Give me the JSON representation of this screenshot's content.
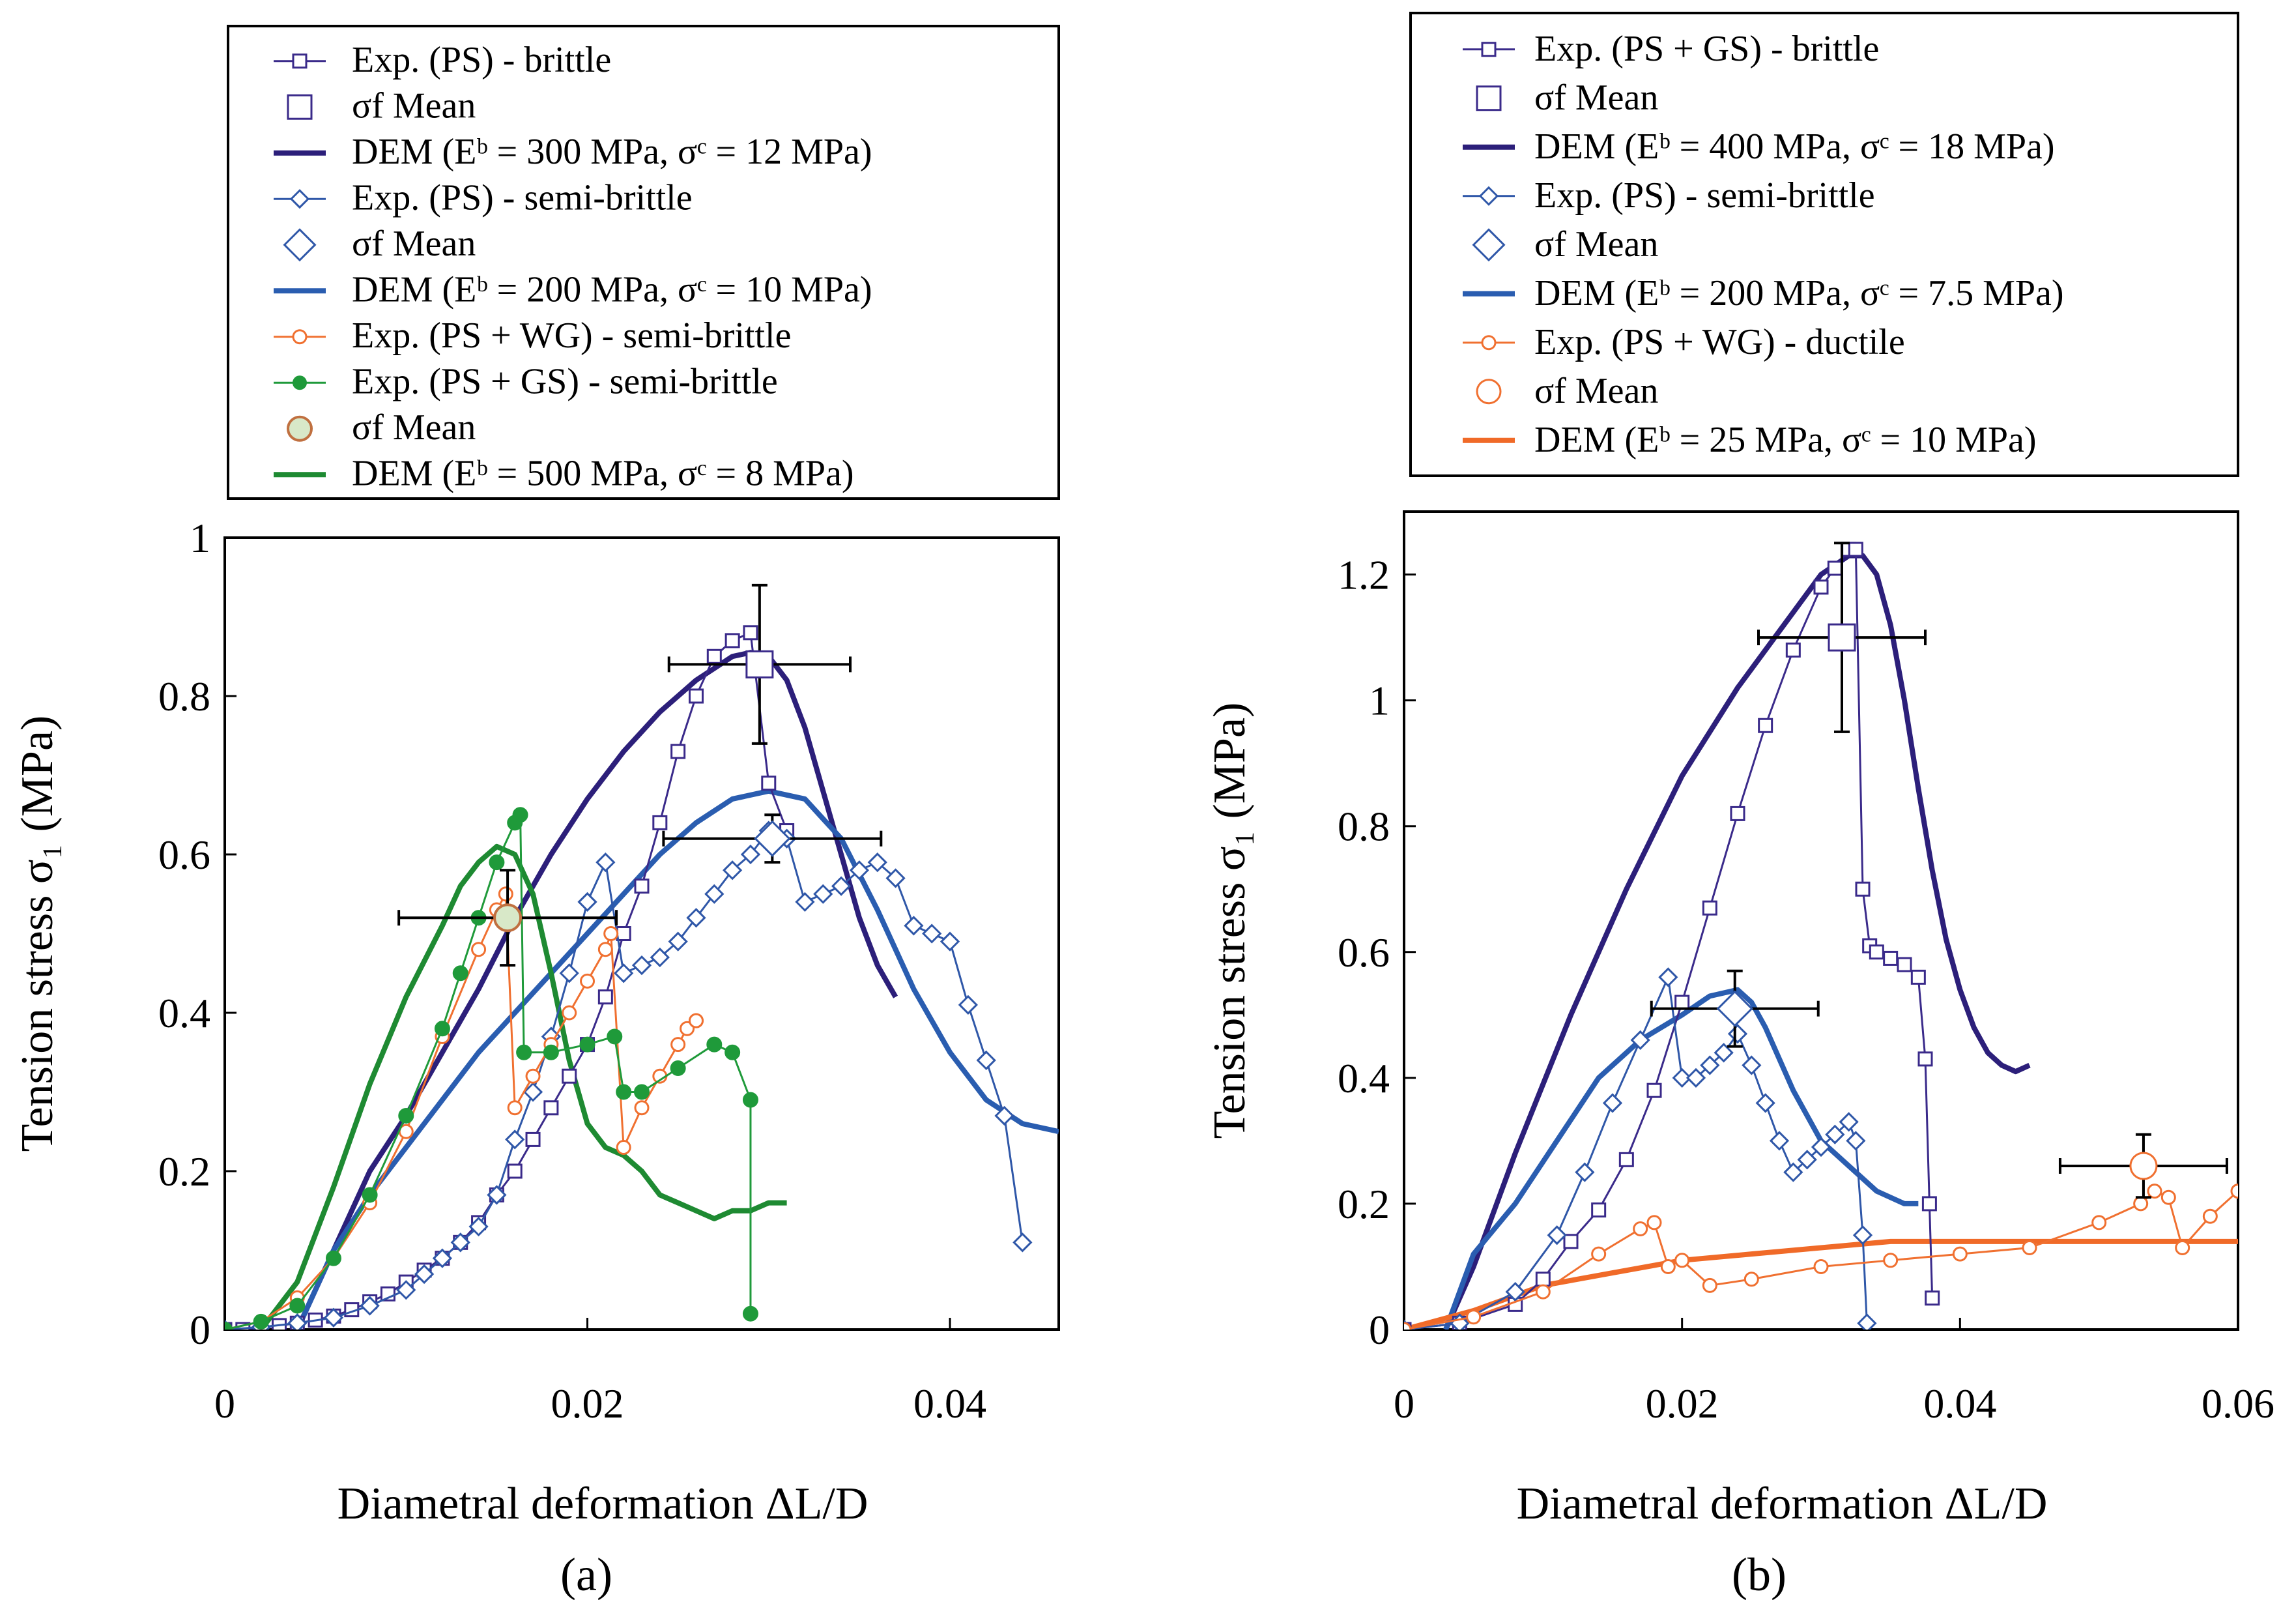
{
  "chart_data": [
    {
      "type": "line",
      "panel_label": "(a)",
      "xlabel": "Diametral deformation   ΔL/D",
      "ylabel": "Tension stress  σ₁   (MPa)",
      "xlim": [
        0,
        0.046
      ],
      "ylim": [
        0,
        1
      ],
      "xticks": [
        0,
        0.02,
        0.04
      ],
      "xtick_labels": [
        "0",
        "0.02",
        "0.04"
      ],
      "yticks": [
        0,
        0.2,
        0.4,
        0.6,
        0.8,
        1
      ],
      "ytick_labels": [
        "0",
        "0.2",
        "0.4",
        "0.6",
        "0.8",
        "1"
      ],
      "legend_position": "top",
      "legend": [
        "Exp.    (PS) - brittle",
        "σf  Mean",
        "DEM   (Eᵇ = 300 MPa,  σᶜ = 12 MPa)",
        "Exp.    (PS) - semi-brittle",
        "σf  Mean",
        "DEM   (Eᵇ = 200 MPa,  σᶜ = 10 MPa)",
        "Exp.    (PS + WG) - semi-brittle",
        "Exp.    (PS + GS) - semi-brittle",
        "σf  Mean",
        "DEM   (Eᵇ = 500 MPa,  σᶜ =   8 MPa)"
      ],
      "series": [
        {
          "name": "Exp. (PS) - brittle",
          "kind": "exp",
          "color": "#3a2a8a",
          "marker": "square",
          "x": [
            0,
            0.001,
            0.002,
            0.003,
            0.004,
            0.005,
            0.006,
            0.007,
            0.008,
            0.009,
            0.01,
            0.011,
            0.012,
            0.013,
            0.014,
            0.015,
            0.016,
            0.017,
            0.018,
            0.019,
            0.02,
            0.021,
            0.022,
            0.023,
            0.024,
            0.025,
            0.026,
            0.027,
            0.028,
            0.029,
            0.03,
            0.031
          ],
          "y": [
            0,
            0,
            0.002,
            0.005,
            0.008,
            0.012,
            0.017,
            0.025,
            0.035,
            0.045,
            0.06,
            0.075,
            0.09,
            0.11,
            0.135,
            0.17,
            0.2,
            0.24,
            0.28,
            0.32,
            0.36,
            0.42,
            0.5,
            0.56,
            0.64,
            0.73,
            0.8,
            0.85,
            0.87,
            0.88,
            0.69,
            0.63
          ]
        },
        {
          "name": "σf Mean (PS brittle)",
          "kind": "mean",
          "color": "#3a2a8a",
          "marker": "square",
          "x": [
            0.0295
          ],
          "y": [
            0.84
          ],
          "xerr": 0.005,
          "yerr": 0.1
        },
        {
          "name": "DEM (Eb = 300 MPa, σc = 12 MPa)",
          "kind": "dem",
          "color": "#2c1f7a",
          "x": [
            0.004,
            0.006,
            0.008,
            0.01,
            0.012,
            0.014,
            0.016,
            0.018,
            0.02,
            0.022,
            0.024,
            0.026,
            0.028,
            0.029,
            0.03,
            0.031,
            0.032,
            0.033,
            0.034,
            0.035,
            0.036,
            0.037
          ],
          "y": [
            0,
            0.1,
            0.2,
            0.27,
            0.35,
            0.43,
            0.52,
            0.6,
            0.67,
            0.73,
            0.78,
            0.82,
            0.85,
            0.855,
            0.85,
            0.82,
            0.76,
            0.68,
            0.6,
            0.52,
            0.46,
            0.42
          ]
        },
        {
          "name": "Exp. (PS) - semi-brittle",
          "kind": "exp",
          "color": "#2f57a8",
          "marker": "diamond",
          "x": [
            0,
            0.002,
            0.004,
            0.006,
            0.008,
            0.01,
            0.011,
            0.012,
            0.013,
            0.014,
            0.015,
            0.016,
            0.017,
            0.018,
            0.019,
            0.02,
            0.021,
            0.022,
            0.023,
            0.024,
            0.025,
            0.026,
            0.027,
            0.028,
            0.029,
            0.03,
            0.031,
            0.032,
            0.033,
            0.034,
            0.035,
            0.036,
            0.037,
            0.038,
            0.039,
            0.04,
            0.041,
            0.042,
            0.043,
            0.044
          ],
          "y": [
            0,
            0.003,
            0.008,
            0.015,
            0.03,
            0.05,
            0.07,
            0.09,
            0.11,
            0.13,
            0.17,
            0.24,
            0.3,
            0.37,
            0.45,
            0.54,
            0.59,
            0.45,
            0.46,
            0.47,
            0.49,
            0.52,
            0.55,
            0.58,
            0.6,
            0.63,
            0.62,
            0.54,
            0.55,
            0.56,
            0.58,
            0.59,
            0.57,
            0.51,
            0.5,
            0.49,
            0.41,
            0.34,
            0.27,
            0.11
          ]
        },
        {
          "name": "σf Mean (PS semi-brittle)",
          "kind": "mean",
          "color": "#2f57a8",
          "marker": "diamond",
          "x": [
            0.0302
          ],
          "y": [
            0.62
          ],
          "xerr": 0.006,
          "yerr": 0.03
        },
        {
          "name": "DEM (Eb = 200 MPa, σc = 10 MPa)",
          "kind": "dem",
          "color": "#2a5db0",
          "x": [
            0.004,
            0.006,
            0.008,
            0.01,
            0.012,
            0.014,
            0.016,
            0.018,
            0.02,
            0.022,
            0.024,
            0.026,
            0.028,
            0.03,
            0.032,
            0.034,
            0.036,
            0.038,
            0.04,
            0.042,
            0.044,
            0.046
          ],
          "y": [
            0,
            0.1,
            0.17,
            0.23,
            0.29,
            0.35,
            0.4,
            0.45,
            0.5,
            0.55,
            0.6,
            0.64,
            0.67,
            0.68,
            0.67,
            0.62,
            0.53,
            0.43,
            0.35,
            0.29,
            0.26,
            0.25
          ]
        },
        {
          "name": "Exp. (PS + WG) - semi-brittle",
          "kind": "exp",
          "color": "#f07030",
          "marker": "circle-open",
          "x": [
            0,
            0.002,
            0.004,
            0.006,
            0.008,
            0.01,
            0.012,
            0.014,
            0.015,
            0.0155,
            0.016,
            0.017,
            0.018,
            0.019,
            0.02,
            0.021,
            0.0213,
            0.022,
            0.023,
            0.024,
            0.025,
            0.0255,
            0.026,
            0.026
          ],
          "y": [
            0,
            0.01,
            0.04,
            0.09,
            0.16,
            0.25,
            0.37,
            0.48,
            0.53,
            0.55,
            0.28,
            0.32,
            0.36,
            0.4,
            0.44,
            0.48,
            0.5,
            0.23,
            0.28,
            0.32,
            0.36,
            0.38,
            0.39,
            0.39
          ]
        },
        {
          "name": "Exp. (PS + GS) - semi-brittle",
          "kind": "exp",
          "color": "#1f9a3a",
          "marker": "circle-filled",
          "x": [
            0,
            0.002,
            0.004,
            0.006,
            0.008,
            0.01,
            0.012,
            0.013,
            0.014,
            0.015,
            0.016,
            0.0163,
            0.0165,
            0.018,
            0.02,
            0.0215,
            0.022,
            0.023,
            0.025,
            0.027,
            0.028,
            0.029,
            0.029
          ],
          "y": [
            0,
            0.01,
            0.03,
            0.09,
            0.17,
            0.27,
            0.38,
            0.45,
            0.52,
            0.59,
            0.64,
            0.65,
            0.35,
            0.35,
            0.36,
            0.37,
            0.3,
            0.3,
            0.33,
            0.36,
            0.35,
            0.29,
            0.02
          ]
        },
        {
          "name": "σf Mean (PS + GS)",
          "kind": "mean",
          "color": "#9a9a50",
          "marker": "circle-filled-light",
          "x": [
            0.0156
          ],
          "y": [
            0.52
          ],
          "xerr": 0.006,
          "yerr": 0.06
        },
        {
          "name": "DEM (Eb = 500 MPa, σc = 8 MPa)",
          "kind": "dem",
          "color": "#1e8a32",
          "x": [
            0.002,
            0.004,
            0.006,
            0.008,
            0.01,
            0.012,
            0.013,
            0.014,
            0.015,
            0.016,
            0.017,
            0.018,
            0.019,
            0.02,
            0.021,
            0.022,
            0.023,
            0.024,
            0.025,
            0.026,
            0.027,
            0.028,
            0.029,
            0.03,
            0.031
          ],
          "y": [
            0,
            0.06,
            0.18,
            0.31,
            0.42,
            0.51,
            0.56,
            0.59,
            0.61,
            0.6,
            0.55,
            0.45,
            0.34,
            0.26,
            0.23,
            0.22,
            0.2,
            0.17,
            0.16,
            0.15,
            0.14,
            0.15,
            0.15,
            0.16,
            0.16
          ]
        }
      ]
    },
    {
      "type": "line",
      "panel_label": "(b)",
      "xlabel": "Diametral deformation   ΔL/D",
      "ylabel": "Tension stress  σ₁   (MPa)",
      "xlim": [
        0,
        0.06
      ],
      "ylim": [
        0,
        1.3
      ],
      "xticks": [
        0,
        0.02,
        0.04,
        0.06
      ],
      "xtick_labels": [
        "0",
        "0.02",
        "0.04",
        "0.06"
      ],
      "yticks": [
        0,
        0.2,
        0.4,
        0.6,
        0.8,
        1,
        1.2
      ],
      "ytick_labels": [
        "0",
        "0.2",
        "0.4",
        "0.6",
        "0.8",
        "1",
        "1.2"
      ],
      "legend_position": "top",
      "legend": [
        "Exp.    (PS + GS) - brittle",
        "σf  Mean",
        "DEM   (Eᵇ = 400 MPa,  σᶜ = 18 MPa)",
        "Exp.    (PS) - semi-brittle",
        "σf  Mean",
        "DEM   (Eᵇ = 200 MPa,  σᶜ = 7.5 MPa)",
        "Exp.    (PS + WG) - ductile",
        "σf  Mean",
        "DEM   (Eᵇ =   25 MPa,  σᶜ = 10 MPa)"
      ],
      "series": [
        {
          "name": "Exp. (PS + GS) - brittle",
          "kind": "exp",
          "color": "#3a2a8a",
          "marker": "square",
          "x": [
            0,
            0.004,
            0.008,
            0.01,
            0.012,
            0.014,
            0.016,
            0.018,
            0.02,
            0.022,
            0.024,
            0.026,
            0.028,
            0.03,
            0.031,
            0.032,
            0.0325,
            0.033,
            0.0335,
            0.034,
            0.035,
            0.036,
            0.037,
            0.0375,
            0.0378,
            0.038
          ],
          "y": [
            0,
            0.01,
            0.04,
            0.08,
            0.14,
            0.19,
            0.27,
            0.38,
            0.52,
            0.67,
            0.82,
            0.96,
            1.08,
            1.18,
            1.21,
            1.24,
            1.24,
            0.7,
            0.61,
            0.6,
            0.59,
            0.58,
            0.56,
            0.43,
            0.2,
            0.05
          ]
        },
        {
          "name": "σf Mean (PS + GS)",
          "kind": "mean",
          "color": "#3a2a8a",
          "marker": "square",
          "x": [
            0.0315
          ],
          "y": [
            1.1
          ],
          "xerr": 0.006,
          "yerr": 0.15
        },
        {
          "name": "DEM (Eb = 400 MPa, σc = 18 MPa)",
          "kind": "dem",
          "color": "#2c1f7a",
          "x": [
            0.003,
            0.005,
            0.008,
            0.012,
            0.016,
            0.02,
            0.024,
            0.028,
            0.03,
            0.032,
            0.033,
            0.034,
            0.035,
            0.036,
            0.037,
            0.038,
            0.039,
            0.04,
            0.041,
            0.042,
            0.043,
            0.044,
            0.045
          ],
          "y": [
            0,
            0.1,
            0.28,
            0.5,
            0.7,
            0.88,
            1.02,
            1.14,
            1.2,
            1.23,
            1.23,
            1.2,
            1.12,
            1.0,
            0.86,
            0.73,
            0.62,
            0.54,
            0.48,
            0.44,
            0.42,
            0.41,
            0.42
          ]
        },
        {
          "name": "Exp. (PS) - semi-brittle",
          "kind": "exp",
          "color": "#2f57a8",
          "marker": "diamond",
          "x": [
            0,
            0.004,
            0.008,
            0.011,
            0.013,
            0.015,
            0.017,
            0.019,
            0.02,
            0.021,
            0.022,
            0.023,
            0.024,
            0.025,
            0.026,
            0.027,
            0.028,
            0.029,
            0.03,
            0.031,
            0.032,
            0.0325,
            0.033,
            0.0333
          ],
          "y": [
            0,
            0.01,
            0.06,
            0.15,
            0.25,
            0.36,
            0.46,
            0.56,
            0.4,
            0.4,
            0.42,
            0.44,
            0.47,
            0.42,
            0.36,
            0.3,
            0.25,
            0.27,
            0.29,
            0.31,
            0.33,
            0.3,
            0.15,
            0.01
          ]
        },
        {
          "name": "σf Mean (PS semi-brittle)",
          "kind": "mean",
          "color": "#2f57a8",
          "marker": "diamond",
          "x": [
            0.0238
          ],
          "y": [
            0.51
          ],
          "xerr": 0.006,
          "yerr": 0.06
        },
        {
          "name": "DEM (Eb = 200 MPa, σc = 7.5 MPa)",
          "kind": "dem",
          "color": "#2a5db0",
          "x": [
            0.003,
            0.005,
            0.008,
            0.011,
            0.014,
            0.017,
            0.02,
            0.022,
            0.024,
            0.025,
            0.026,
            0.028,
            0.03,
            0.032,
            0.034,
            0.036,
            0.037
          ],
          "y": [
            0,
            0.12,
            0.2,
            0.3,
            0.4,
            0.46,
            0.5,
            0.53,
            0.54,
            0.52,
            0.48,
            0.38,
            0.3,
            0.26,
            0.22,
            0.2,
            0.2
          ]
        },
        {
          "name": "Exp. (PS + WG) - ductile",
          "kind": "exp",
          "color": "#f07030",
          "marker": "circle-open",
          "x": [
            0,
            0.005,
            0.01,
            0.014,
            0.017,
            0.018,
            0.019,
            0.02,
            0.022,
            0.025,
            0.03,
            0.035,
            0.04,
            0.045,
            0.05,
            0.053,
            0.054,
            0.055,
            0.056,
            0.058,
            0.06
          ],
          "y": [
            0,
            0.02,
            0.06,
            0.12,
            0.16,
            0.17,
            0.1,
            0.11,
            0.07,
            0.08,
            0.1,
            0.11,
            0.12,
            0.13,
            0.17,
            0.2,
            0.22,
            0.21,
            0.13,
            0.18,
            0.22
          ]
        },
        {
          "name": "σf Mean (PS + WG)",
          "kind": "mean",
          "color": "#f07030",
          "marker": "circle-open",
          "x": [
            0.0532
          ],
          "y": [
            0.26
          ],
          "xerr": 0.006,
          "yerr": 0.05
        },
        {
          "name": "DEM (Eb = 25 MPa, σc = 10 MPa)",
          "kind": "dem",
          "color": "#f06a28",
          "x": [
            0,
            0.005,
            0.01,
            0.015,
            0.02,
            0.025,
            0.03,
            0.035,
            0.04,
            0.045,
            0.05,
            0.055,
            0.058,
            0.06
          ],
          "y": [
            0,
            0.03,
            0.07,
            0.09,
            0.11,
            0.12,
            0.13,
            0.14,
            0.14,
            0.14,
            0.14,
            0.14,
            0.14,
            0.14
          ]
        }
      ]
    }
  ]
}
